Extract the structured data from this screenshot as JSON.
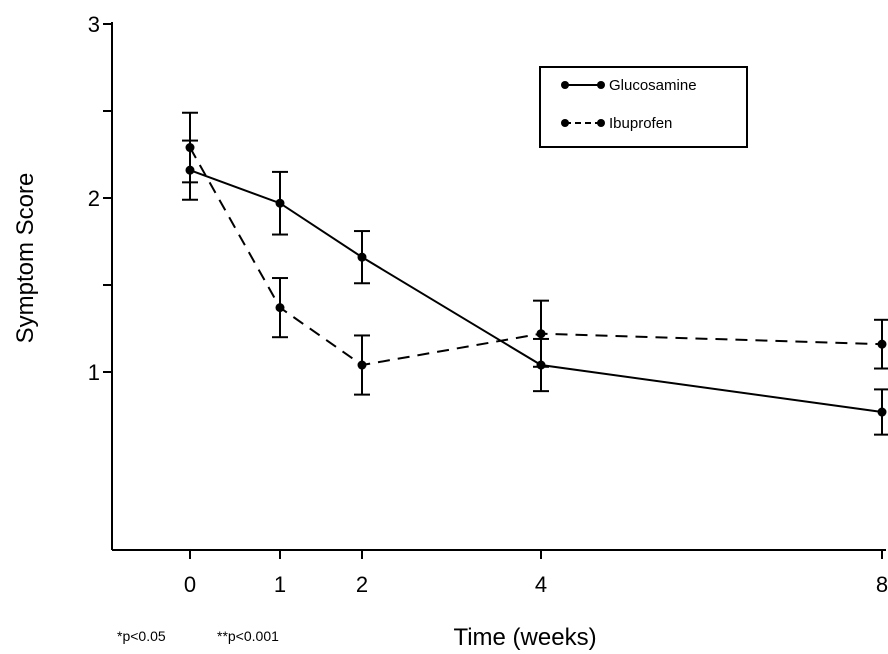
{
  "chart_data": {
    "type": "line",
    "xlabel": "Time (weeks)",
    "ylabel": "Symptom Score",
    "x": [
      0,
      1,
      2,
      4,
      8
    ],
    "xticks": [
      "0",
      "1",
      "2",
      "4",
      "8"
    ],
    "yticks": [
      {
        "value": 1,
        "label": "1"
      },
      {
        "value": 1.5,
        "label": ""
      },
      {
        "value": 2,
        "label": "2"
      },
      {
        "value": 2.5,
        "label": ""
      },
      {
        "value": 3,
        "label": "3"
      }
    ],
    "ylim": [
      0,
      3
    ],
    "grid": false,
    "legend_position": "top-right",
    "series": [
      {
        "name": "Glucosamine",
        "line_style": "solid",
        "values": [
          2.16,
          1.97,
          1.66,
          1.04,
          0.77
        ],
        "error": [
          0.17,
          0.18,
          0.15,
          0.15,
          0.13
        ]
      },
      {
        "name": "Ibuprofen",
        "line_style": "dashed",
        "values": [
          2.29,
          1.37,
          1.04,
          1.22,
          1.16
        ],
        "error": [
          0.2,
          0.17,
          0.17,
          0.19,
          0.14
        ]
      }
    ],
    "footnote_left": "*p<0.05",
    "footnote_right": "**p<0.001"
  }
}
